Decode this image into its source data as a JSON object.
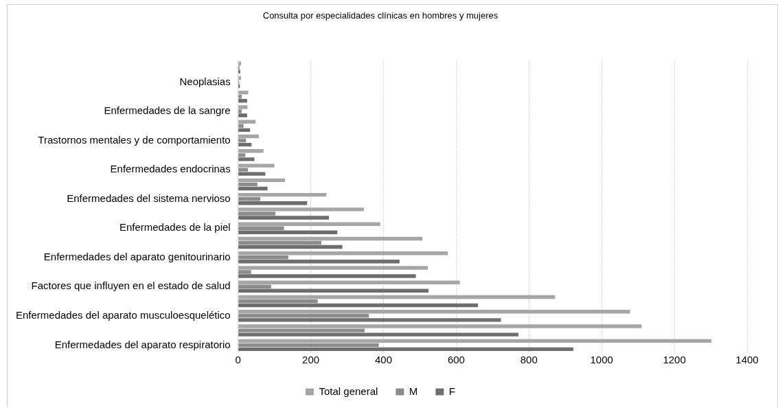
{
  "chart_data": {
    "type": "bar",
    "orientation": "horizontal",
    "title": "Consulta por especialidades clínicas en hombres y mujeres",
    "categories": [
      null,
      "Neoplasias",
      null,
      "Enfermedades de la sangre",
      null,
      "Trastornos mentales y de comportamiento",
      null,
      "Enfermedades endocrinas",
      null,
      "Enfermedades del sistema nervioso",
      null,
      "Enfermedades de la piel",
      null,
      "Enfermedades del aparato genitourinario",
      null,
      "Factores que influyen en el estado de salud",
      null,
      "Enfermedades del aparato musculoesquelético",
      null,
      "Enfermedades del aparato respiratorio"
    ],
    "series": [
      {
        "name": "Total general",
        "color": "#a6a6a6",
        "values": [
          8,
          8,
          28,
          26,
          48,
          57,
          70,
          100,
          129,
          243,
          346,
          391,
          507,
          577,
          522,
          610,
          872,
          1078,
          1110,
          1302
        ]
      },
      {
        "name": "M",
        "color": "#8c8c8c",
        "values": [
          4,
          3,
          10,
          10,
          15,
          22,
          20,
          27,
          53,
          61,
          103,
          126,
          229,
          138,
          36,
          91,
          219,
          360,
          348,
          387
        ]
      },
      {
        "name": "F",
        "color": "#6e6e6e",
        "values": [
          6,
          5,
          25,
          25,
          33,
          37,
          45,
          75,
          81,
          190,
          250,
          273,
          287,
          444,
          489,
          524,
          660,
          723,
          771,
          922
        ]
      }
    ],
    "xlim": [
      0,
      1400
    ],
    "xticks": [
      0,
      200,
      400,
      600,
      800,
      1000,
      1200,
      1400
    ],
    "grid": "x",
    "legend": "bottom"
  }
}
